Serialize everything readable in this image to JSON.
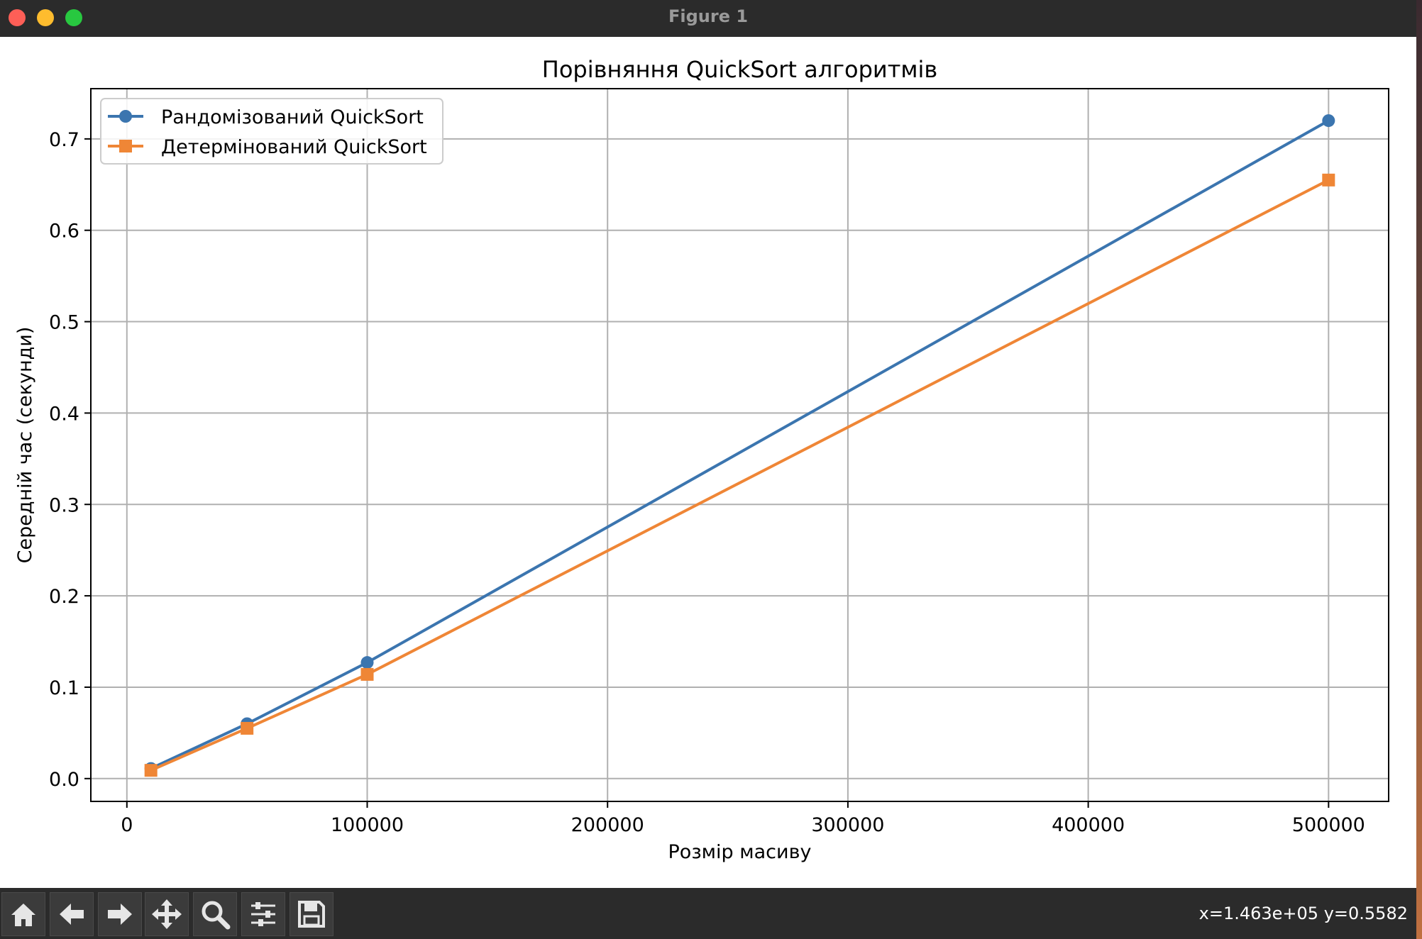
{
  "window": {
    "title": "Figure 1"
  },
  "toolbar": {
    "tools": [
      {
        "name": "home-icon"
      },
      {
        "name": "back-arrow-icon"
      },
      {
        "name": "forward-arrow-icon"
      },
      {
        "name": "pan-icon"
      },
      {
        "name": "zoom-icon"
      },
      {
        "name": "configure-subplots-icon"
      },
      {
        "name": "save-icon"
      }
    ],
    "coords": "x=1.463e+05 y=0.5582"
  },
  "colors": {
    "series1": "#3b75af",
    "series2": "#ef8636",
    "titlebar": "#2b2b2b"
  },
  "chart_data": {
    "type": "line",
    "title": "Порівняння QuickSort алгоритмів",
    "xlabel": "Розмір масиву",
    "ylabel": "Середній час (секунди)",
    "xlim": [
      -15000,
      525000
    ],
    "ylim": [
      -0.025,
      0.755
    ],
    "x_ticks": [
      0,
      100000,
      200000,
      300000,
      400000,
      500000
    ],
    "x_tick_labels": [
      "0",
      "100000",
      "200000",
      "300000",
      "400000",
      "500000"
    ],
    "y_ticks": [
      0.0,
      0.1,
      0.2,
      0.3,
      0.4,
      0.5,
      0.6,
      0.7
    ],
    "y_tick_labels": [
      "0.0",
      "0.1",
      "0.2",
      "0.3",
      "0.4",
      "0.5",
      "0.6",
      "0.7"
    ],
    "grid": true,
    "legend_position": "upper-left",
    "x": [
      10000,
      50000,
      100000,
      500000
    ],
    "series": [
      {
        "name": "Рандомізований QuickSort",
        "values": [
          0.011,
          0.06,
          0.127,
          0.72
        ],
        "color": "#3b75af",
        "marker": "circle"
      },
      {
        "name": "Детермінований QuickSort",
        "values": [
          0.009,
          0.055,
          0.114,
          0.655
        ],
        "color": "#ef8636",
        "marker": "square"
      }
    ]
  }
}
